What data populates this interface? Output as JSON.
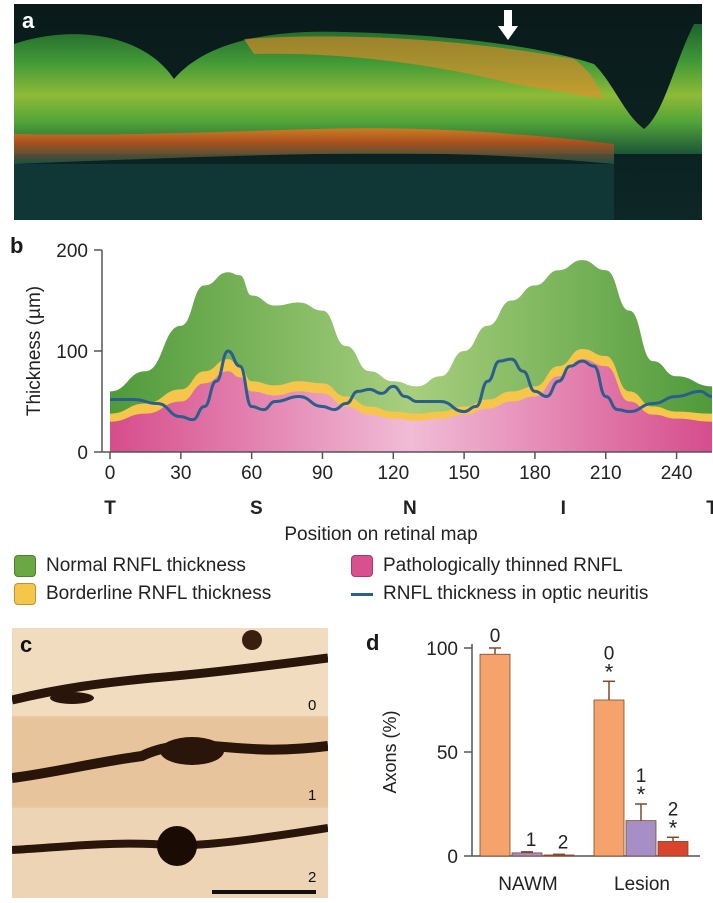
{
  "panels": {
    "a": "a",
    "b": "b",
    "c": "c",
    "d": "d"
  },
  "panel_c": {
    "scale_labels": [
      "0",
      "1",
      "2"
    ]
  },
  "colors": {
    "normal": "#5a9a3a",
    "borderline": "#f6c64a",
    "pathological": "#d9508f",
    "neuritis_line": "#2b5e8c",
    "bar_orange": "#f4a36c",
    "bar_purple": "#a58fc4",
    "bar_red": "#d8452c"
  },
  "chart_data": [
    {
      "type": "area",
      "xlabel": "Position on retinal map",
      "ylabel": "Thickness (µm)",
      "xlim": [
        0,
        255
      ],
      "ylim": [
        0,
        200
      ],
      "xticks": [
        0,
        30,
        60,
        90,
        120,
        150,
        180,
        210,
        240
      ],
      "yticks": [
        0,
        100,
        200
      ],
      "region_labels": [
        {
          "label": "T",
          "x": 0
        },
        {
          "label": "S",
          "x": 62
        },
        {
          "label": "N",
          "x": 127
        },
        {
          "label": "I",
          "x": 192
        },
        {
          "label": "T",
          "x": 255
        }
      ],
      "series": [
        {
          "name": "Normal RNFL thickness",
          "x": [
            0,
            15,
            30,
            40,
            50,
            55,
            60,
            70,
            80,
            90,
            100,
            110,
            120,
            130,
            140,
            150,
            160,
            170,
            180,
            190,
            200,
            210,
            220,
            230,
            240,
            255
          ],
          "values": [
            60,
            80,
            125,
            165,
            178,
            175,
            155,
            145,
            148,
            140,
            105,
            80,
            70,
            65,
            75,
            100,
            125,
            150,
            165,
            180,
            190,
            180,
            140,
            90,
            75,
            65
          ]
        },
        {
          "name": "Borderline RNFL thickness",
          "x": [
            0,
            15,
            30,
            40,
            50,
            55,
            60,
            70,
            80,
            90,
            100,
            110,
            120,
            130,
            140,
            150,
            160,
            170,
            180,
            190,
            200,
            210,
            220,
            230,
            240,
            255
          ],
          "values": [
            38,
            48,
            62,
            80,
            92,
            85,
            70,
            66,
            70,
            68,
            55,
            45,
            40,
            38,
            40,
            45,
            52,
            60,
            65,
            85,
            102,
            95,
            60,
            45,
            40,
            38
          ]
        },
        {
          "name": "Pathologically thinned RNFL",
          "x": [
            0,
            15,
            30,
            40,
            50,
            55,
            60,
            70,
            80,
            90,
            100,
            110,
            120,
            130,
            140,
            150,
            160,
            170,
            180,
            190,
            200,
            210,
            220,
            230,
            240,
            255
          ],
          "values": [
            30,
            38,
            50,
            68,
            80,
            74,
            60,
            56,
            60,
            58,
            45,
            37,
            33,
            31,
            33,
            37,
            43,
            50,
            55,
            75,
            92,
            85,
            50,
            37,
            33,
            30
          ]
        },
        {
          "name": "RNFL thickness in optic neuritis",
          "x": [
            0,
            10,
            20,
            30,
            35,
            40,
            45,
            50,
            55,
            60,
            65,
            70,
            80,
            90,
            95,
            100,
            105,
            110,
            115,
            120,
            125,
            130,
            140,
            150,
            155,
            160,
            165,
            170,
            175,
            180,
            185,
            190,
            195,
            200,
            205,
            210,
            215,
            220,
            230,
            240,
            250,
            255
          ],
          "values": [
            52,
            52,
            48,
            35,
            32,
            45,
            70,
            100,
            85,
            45,
            42,
            50,
            55,
            45,
            42,
            48,
            60,
            62,
            58,
            65,
            55,
            50,
            50,
            40,
            45,
            70,
            90,
            92,
            80,
            60,
            55,
            70,
            85,
            90,
            85,
            55,
            42,
            40,
            48,
            55,
            60,
            55
          ]
        }
      ]
    },
    {
      "type": "bar",
      "ylabel": "Axons (%)",
      "ylim": [
        0,
        100
      ],
      "yticks": [
        0,
        50,
        100
      ],
      "categories": [
        "NAWM",
        "Lesion"
      ],
      "series": [
        {
          "name": "0",
          "values": [
            97,
            75
          ],
          "errors": [
            3,
            9
          ]
        },
        {
          "name": "1",
          "values": [
            1.5,
            17
          ],
          "errors": [
            0.5,
            8
          ]
        },
        {
          "name": "2",
          "values": [
            0.5,
            7
          ],
          "errors": [
            0.3,
            2
          ]
        }
      ],
      "bar_labels": [
        {
          "label": "0",
          "star": ""
        },
        {
          "label": "1",
          "star": ""
        },
        {
          "label": "2",
          "star": ""
        },
        {
          "label": "0",
          "star": "*"
        },
        {
          "label": "1",
          "star": "*"
        },
        {
          "label": "2",
          "star": "*"
        }
      ]
    }
  ]
}
